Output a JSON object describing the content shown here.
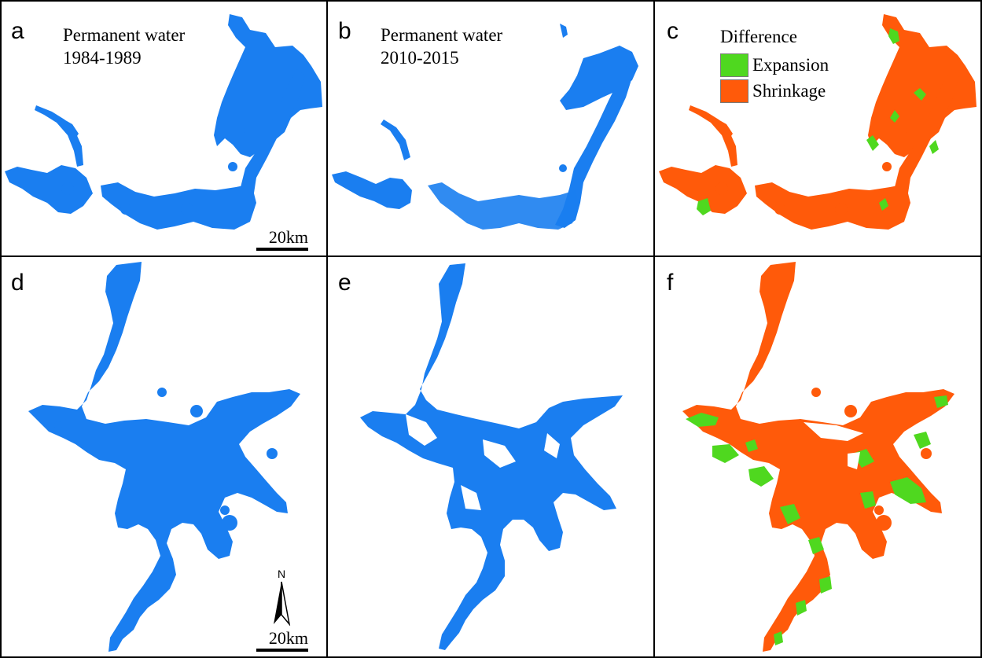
{
  "colors": {
    "water": "#1a7ef0",
    "expansion": "#4fd81f",
    "shrinkage": "#ff5a0a",
    "border": "#000000"
  },
  "panels": {
    "a": {
      "label": "a",
      "title_line1": "Permanent water",
      "title_line2": "1984-1989"
    },
    "b": {
      "label": "b",
      "title_line1": "Permanent water",
      "title_line2": "2010-2015"
    },
    "c": {
      "label": "c"
    },
    "d": {
      "label": "d"
    },
    "e": {
      "label": "e"
    },
    "f": {
      "label": "f"
    }
  },
  "legend": {
    "title": "Difference",
    "items": [
      {
        "label": "Expansion",
        "color": "#4fd81f"
      },
      {
        "label": "Shrinkage",
        "color": "#ff5a0a"
      }
    ]
  },
  "scale_bar": {
    "label": "20km"
  },
  "north_arrow": {
    "label": "N"
  }
}
